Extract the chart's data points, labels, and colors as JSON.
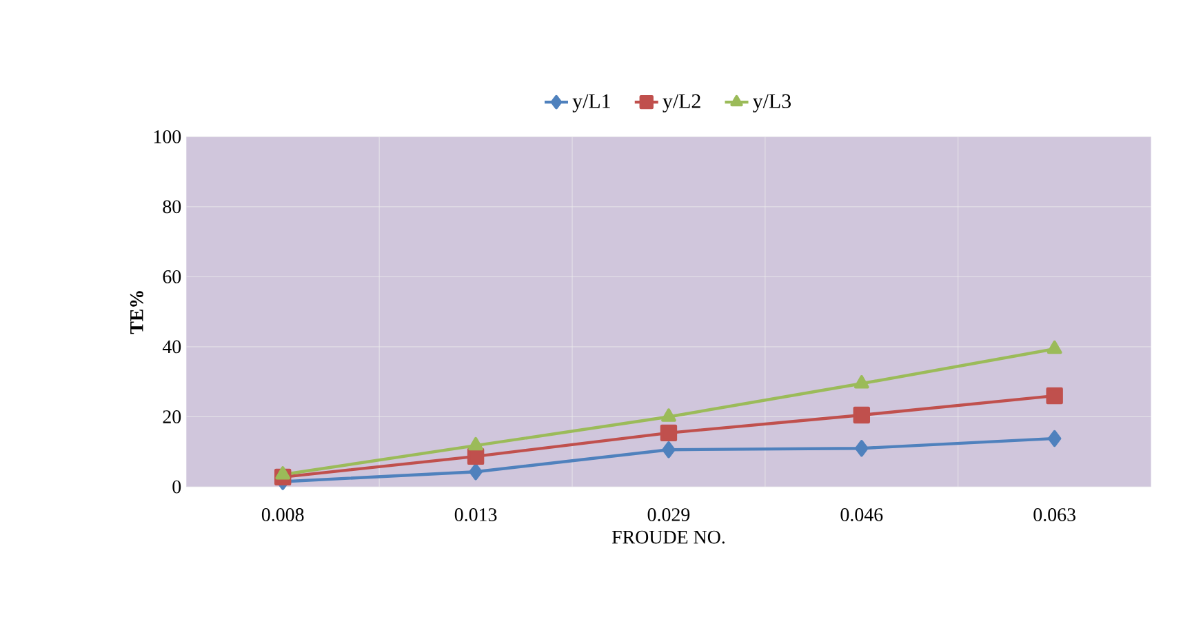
{
  "chart_data": {
    "type": "line",
    "xlabel": "FROUDE NO.",
    "ylabel": "TE%",
    "categories": [
      "0.008",
      "0.013",
      "0.029",
      "0.046",
      "0.063"
    ],
    "series": [
      {
        "name": "y/L1",
        "color": "#4f81bd",
        "marker": "diamond",
        "values": [
          1.5,
          4.3,
          10.6,
          11,
          13.8
        ]
      },
      {
        "name": "y/L2",
        "color": "#c0504d",
        "marker": "square",
        "values": [
          2.8,
          8.7,
          15.4,
          20.5,
          26
        ]
      },
      {
        "name": "y/L3",
        "color": "#9bbb59",
        "marker": "triangle",
        "values": [
          3.5,
          11.8,
          20,
          29.5,
          39.4
        ]
      }
    ],
    "ylim": [
      0,
      100
    ],
    "yticks": [
      0,
      20,
      40,
      60,
      80,
      100
    ],
    "grid": true,
    "legend": "top"
  }
}
